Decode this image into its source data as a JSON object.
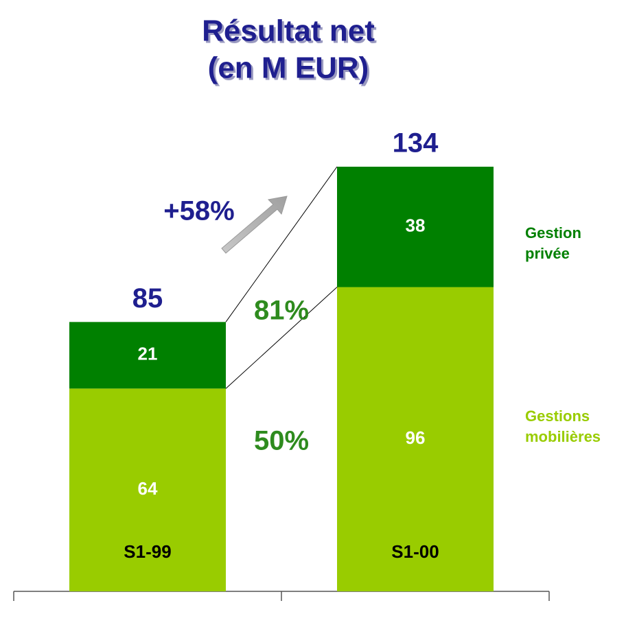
{
  "chart_data": {
    "type": "stacked_bar",
    "title": [
      "Résultat net",
      "(en M EUR)"
    ],
    "title_color": "#1f1f8f",
    "categories": [
      "S1-99",
      "S1-00"
    ],
    "series": [
      {
        "name": "Gestions mobilières",
        "color": "#99cc00",
        "values": [
          64,
          96
        ]
      },
      {
        "name": "Gestion privée",
        "color": "#008000",
        "values": [
          21,
          38
        ]
      }
    ],
    "totals": [
      85,
      134
    ],
    "annotations": [
      {
        "text": "+58%",
        "color": "#1f1f8f"
      },
      {
        "text": "81%",
        "color": "#2e8b1e"
      },
      {
        "text": "50%",
        "color": "#2e8b1e"
      }
    ]
  }
}
